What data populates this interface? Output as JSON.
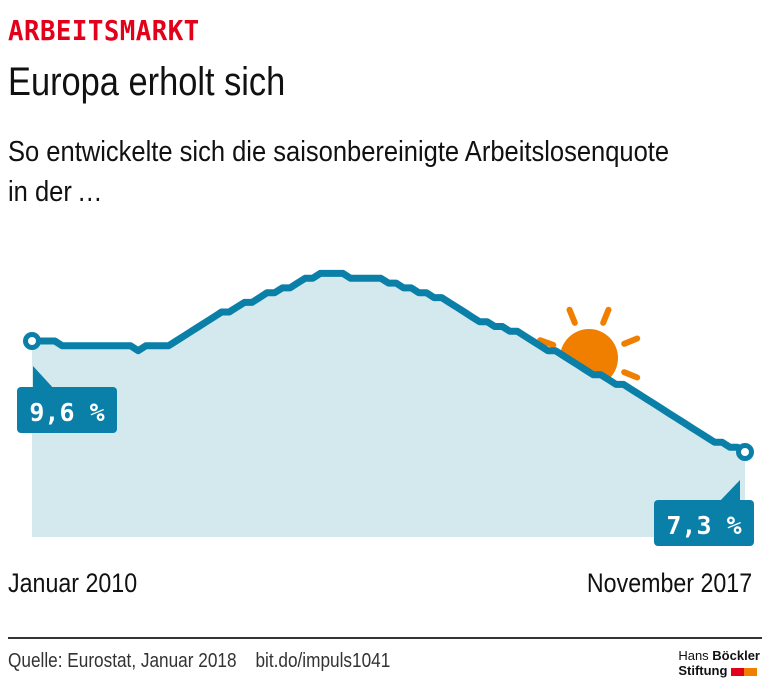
{
  "header": {
    "kicker": "ARBEITSMARKT",
    "title": "Europa erholt sich",
    "subtitle_line1": "So entwickelte sich die saisonbereinigte Arbeitslosenquote",
    "subtitle_line2": "in der …"
  },
  "chart_data": {
    "type": "area",
    "title": "Europa erholt sich",
    "xlabel": "",
    "ylabel": "",
    "x_start_label": "Januar 2010",
    "x_end_label": "November 2017",
    "unit": "%",
    "start_value_label": "9,6 %",
    "end_value_label": "7,3 %",
    "ylim": [
      0,
      11.5
    ],
    "grid": false,
    "series": [
      {
        "name": "Arbeitslosenquote",
        "values": [
          9.6,
          9.6,
          9.6,
          9.6,
          9.5,
          9.5,
          9.5,
          9.5,
          9.5,
          9.5,
          9.5,
          9.5,
          9.5,
          9.5,
          9.4,
          9.5,
          9.5,
          9.5,
          9.5,
          9.6,
          9.7,
          9.8,
          9.9,
          10.0,
          10.1,
          10.2,
          10.2,
          10.3,
          10.4,
          10.4,
          10.5,
          10.6,
          10.6,
          10.7,
          10.7,
          10.8,
          10.9,
          10.9,
          11.0,
          11.0,
          11.0,
          11.0,
          10.9,
          10.9,
          10.9,
          10.9,
          10.9,
          10.8,
          10.8,
          10.7,
          10.7,
          10.6,
          10.6,
          10.5,
          10.5,
          10.4,
          10.3,
          10.2,
          10.1,
          10.0,
          10.0,
          9.9,
          9.9,
          9.8,
          9.8,
          9.7,
          9.6,
          9.5,
          9.4,
          9.4,
          9.3,
          9.2,
          9.1,
          9.0,
          8.9,
          8.9,
          8.8,
          8.7,
          8.7,
          8.6,
          8.5,
          8.4,
          8.3,
          8.2,
          8.1,
          8.0,
          7.9,
          7.8,
          7.7,
          7.6,
          7.5,
          7.5,
          7.4,
          7.4,
          7.3
        ]
      }
    ]
  },
  "colors": {
    "line": "#0a7fa8",
    "area": "#d3e9ed",
    "label_box": "#0a7fa8",
    "stars": "#0a7fa8",
    "sun": "#f07f00",
    "kicker": "#e2001a",
    "logo_red": "#e2001a",
    "logo_orange": "#f07f00"
  },
  "icons": {
    "stars": "eu-star-icon",
    "sun": "sun-icon"
  },
  "footer": {
    "source": "Quelle: Eurostat, Januar 2018",
    "link": "bit.do/impuls1041",
    "logo_line1_regular": "Hans ",
    "logo_line1_bold": "Böckler",
    "logo_line2": "Stiftung"
  }
}
